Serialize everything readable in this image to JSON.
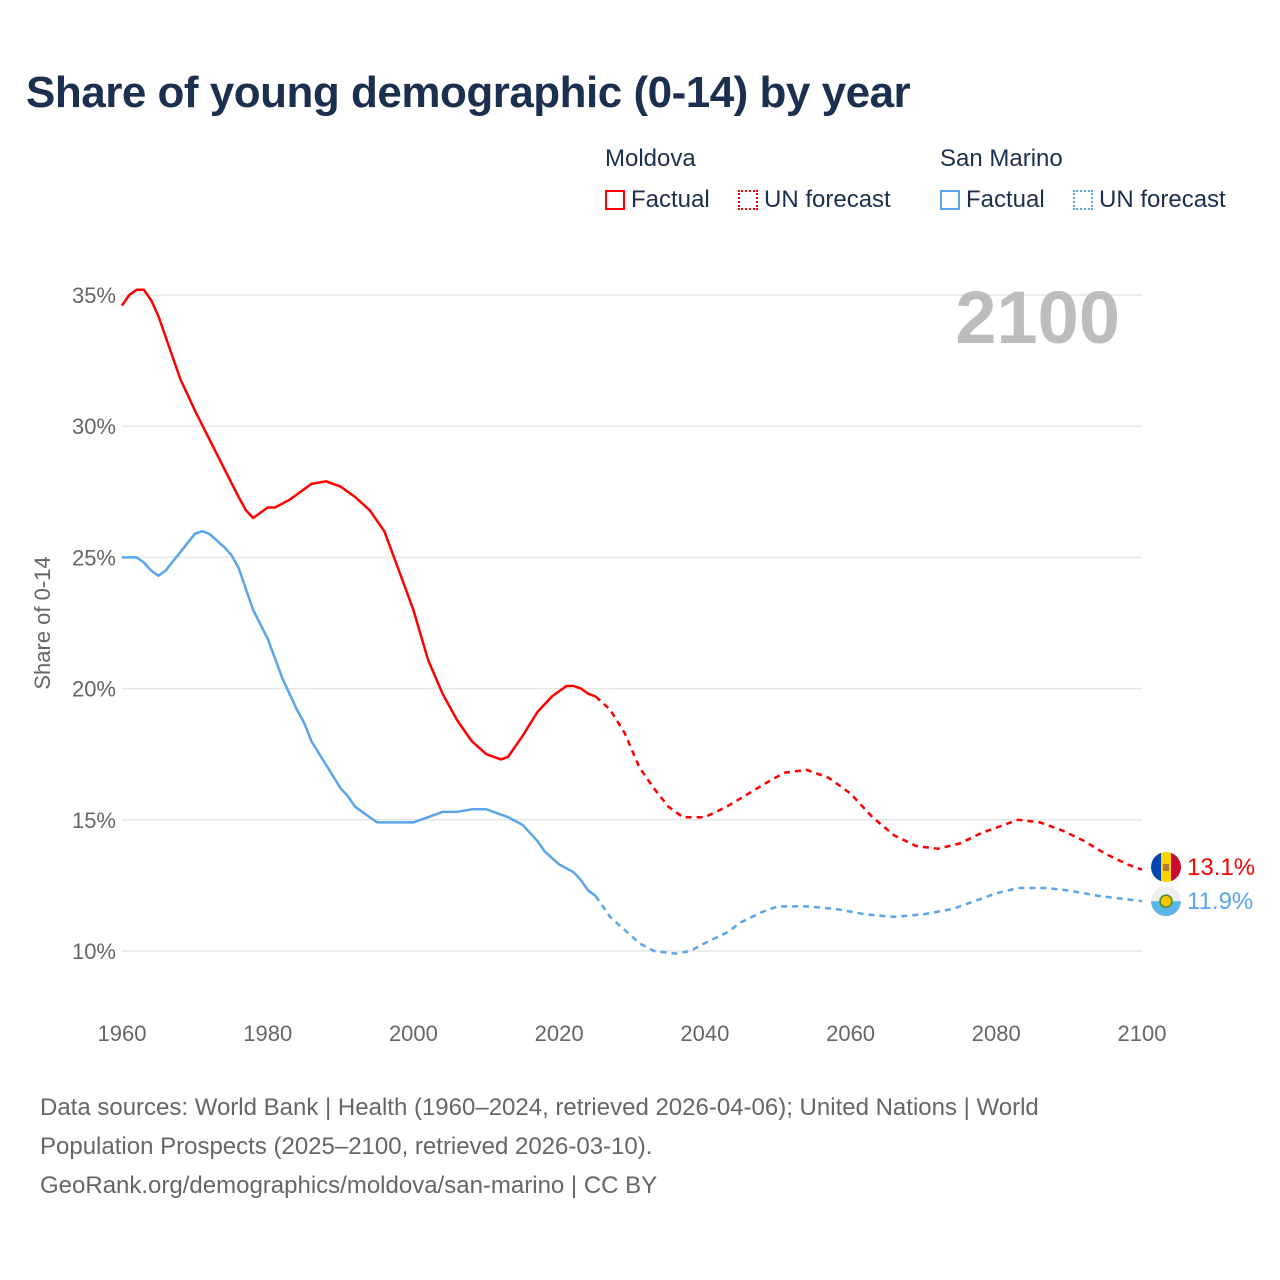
{
  "title": "Share of young demographic (0-14) by year",
  "legend": {
    "groups": [
      {
        "country": "Moldova",
        "factual": "Factual",
        "forecast": "UN forecast",
        "color": "#ff0000"
      },
      {
        "country": "San Marino",
        "factual": "Factual",
        "forecast": "UN forecast",
        "color": "#5aa5ea"
      }
    ]
  },
  "footer": {
    "line1": "Data sources: World Bank | Health (1960–2024, retrieved 2026-04-06); United Nations | World",
    "line2": "Population Prospects (2025–2100, retrieved 2026-03-10).",
    "line3": "GeoRank.org/demographics/moldova/san-marino | CC BY"
  },
  "chart_data": {
    "type": "line",
    "title": "Share of young demographic (0-14) by year",
    "ylabel": "Share of 0-14",
    "xlabel": "",
    "xlim": [
      1960,
      2100
    ],
    "ylim": [
      8,
      36
    ],
    "x_ticks": [
      1960,
      1980,
      2000,
      2020,
      2040,
      2060,
      2080,
      2100
    ],
    "x_tick_labels": [
      "1960",
      "1980",
      "2000",
      "2020",
      "2040",
      "2060",
      "2080",
      "2100"
    ],
    "y_ticks": [
      10,
      15,
      20,
      25,
      30,
      35
    ],
    "y_tick_labels": [
      "10%",
      "15%",
      "20%",
      "25%",
      "30%",
      "35%"
    ],
    "grid": true,
    "year_watermark": "2100",
    "forecast_start": 2025,
    "series": [
      {
        "name": "Moldova",
        "color": "#ff0000",
        "end_label": "13.1%",
        "points": [
          [
            1960,
            34.6
          ],
          [
            1961,
            35.0
          ],
          [
            1962,
            35.2
          ],
          [
            1963,
            35.2
          ],
          [
            1964,
            34.8
          ],
          [
            1965,
            34.2
          ],
          [
            1966,
            33.4
          ],
          [
            1967,
            32.6
          ],
          [
            1968,
            31.8
          ],
          [
            1969,
            31.2
          ],
          [
            1970,
            30.6
          ],
          [
            1972,
            29.5
          ],
          [
            1974,
            28.4
          ],
          [
            1976,
            27.3
          ],
          [
            1977,
            26.8
          ],
          [
            1978,
            26.5
          ],
          [
            1980,
            26.9
          ],
          [
            1981,
            26.9
          ],
          [
            1983,
            27.2
          ],
          [
            1985,
            27.6
          ],
          [
            1986,
            27.8
          ],
          [
            1988,
            27.9
          ],
          [
            1990,
            27.7
          ],
          [
            1992,
            27.3
          ],
          [
            1994,
            26.8
          ],
          [
            1996,
            26.0
          ],
          [
            1998,
            24.5
          ],
          [
            2000,
            23.0
          ],
          [
            2002,
            21.1
          ],
          [
            2004,
            19.8
          ],
          [
            2006,
            18.8
          ],
          [
            2008,
            18.0
          ],
          [
            2010,
            17.5
          ],
          [
            2012,
            17.3
          ],
          [
            2013,
            17.4
          ],
          [
            2015,
            18.2
          ],
          [
            2017,
            19.1
          ],
          [
            2019,
            19.7
          ],
          [
            2021,
            20.1
          ],
          [
            2022,
            20.1
          ],
          [
            2023,
            20.0
          ],
          [
            2024,
            19.8
          ],
          [
            2025,
            19.7
          ],
          [
            2027,
            19.2
          ],
          [
            2029,
            18.3
          ],
          [
            2031,
            17.0
          ],
          [
            2033,
            16.2
          ],
          [
            2035,
            15.5
          ],
          [
            2037,
            15.1
          ],
          [
            2040,
            15.1
          ],
          [
            2043,
            15.5
          ],
          [
            2046,
            16.0
          ],
          [
            2049,
            16.5
          ],
          [
            2051,
            16.8
          ],
          [
            2054,
            16.9
          ],
          [
            2057,
            16.6
          ],
          [
            2060,
            16.0
          ],
          [
            2063,
            15.1
          ],
          [
            2066,
            14.4
          ],
          [
            2069,
            14.0
          ],
          [
            2072,
            13.9
          ],
          [
            2075,
            14.1
          ],
          [
            2078,
            14.5
          ],
          [
            2081,
            14.8
          ],
          [
            2083,
            15.0
          ],
          [
            2086,
            14.9
          ],
          [
            2089,
            14.6
          ],
          [
            2092,
            14.2
          ],
          [
            2095,
            13.7
          ],
          [
            2098,
            13.3
          ],
          [
            2100,
            13.1
          ]
        ]
      },
      {
        "name": "San Marino",
        "color": "#5aa5ea",
        "end_label": "11.9%",
        "points": [
          [
            1960,
            25.0
          ],
          [
            1962,
            25.0
          ],
          [
            1963,
            24.8
          ],
          [
            1964,
            24.5
          ],
          [
            1965,
            24.3
          ],
          [
            1966,
            24.5
          ],
          [
            1968,
            25.2
          ],
          [
            1970,
            25.9
          ],
          [
            1971,
            26.0
          ],
          [
            1972,
            25.9
          ],
          [
            1974,
            25.4
          ],
          [
            1975,
            25.1
          ],
          [
            1976,
            24.6
          ],
          [
            1978,
            23.0
          ],
          [
            1980,
            21.9
          ],
          [
            1982,
            20.4
          ],
          [
            1984,
            19.2
          ],
          [
            1985,
            18.7
          ],
          [
            1986,
            18.0
          ],
          [
            1988,
            17.1
          ],
          [
            1990,
            16.2
          ],
          [
            1991,
            15.9
          ],
          [
            1992,
            15.5
          ],
          [
            1994,
            15.1
          ],
          [
            1995,
            14.9
          ],
          [
            2000,
            14.9
          ],
          [
            2002,
            15.1
          ],
          [
            2004,
            15.3
          ],
          [
            2006,
            15.3
          ],
          [
            2008,
            15.4
          ],
          [
            2010,
            15.4
          ],
          [
            2013,
            15.1
          ],
          [
            2015,
            14.8
          ],
          [
            2017,
            14.2
          ],
          [
            2018,
            13.8
          ],
          [
            2020,
            13.3
          ],
          [
            2022,
            13.0
          ],
          [
            2023,
            12.7
          ],
          [
            2024,
            12.3
          ],
          [
            2025,
            12.1
          ],
          [
            2027,
            11.3
          ],
          [
            2029,
            10.8
          ],
          [
            2031,
            10.3
          ],
          [
            2033,
            10.0
          ],
          [
            2036,
            9.9
          ],
          [
            2038,
            10.0
          ],
          [
            2040,
            10.3
          ],
          [
            2043,
            10.7
          ],
          [
            2045,
            11.1
          ],
          [
            2048,
            11.5
          ],
          [
            2050,
            11.7
          ],
          [
            2052,
            11.7
          ],
          [
            2054,
            11.7
          ],
          [
            2058,
            11.6
          ],
          [
            2062,
            11.4
          ],
          [
            2066,
            11.3
          ],
          [
            2070,
            11.4
          ],
          [
            2074,
            11.6
          ],
          [
            2078,
            12.0
          ],
          [
            2080,
            12.2
          ],
          [
            2083,
            12.4
          ],
          [
            2087,
            12.4
          ],
          [
            2090,
            12.3
          ],
          [
            2094,
            12.1
          ],
          [
            2097,
            12.0
          ],
          [
            2100,
            11.9
          ]
        ]
      }
    ]
  }
}
